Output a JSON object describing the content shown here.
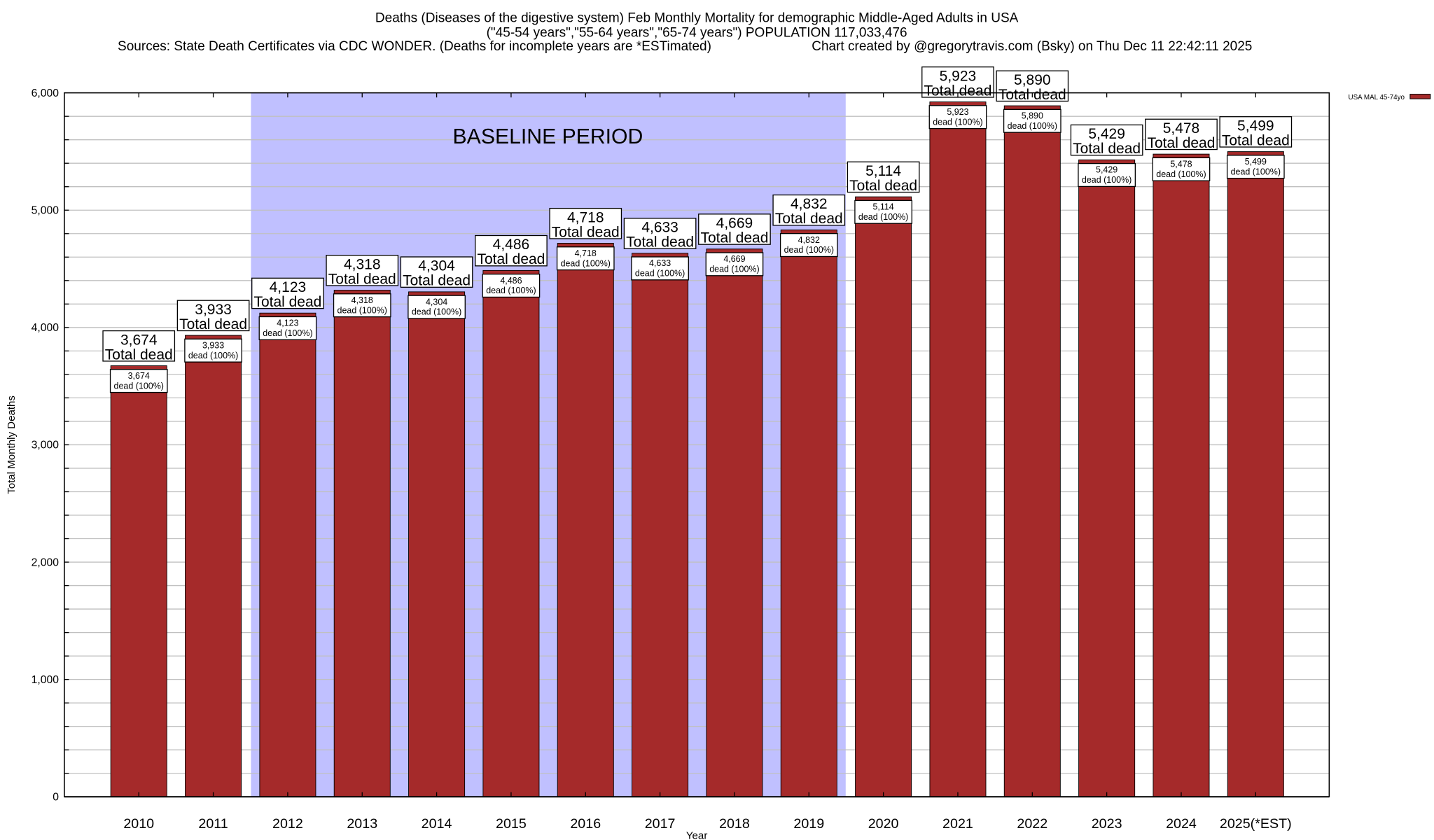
{
  "chart_data": {
    "type": "bar",
    "title": [
      "Deaths (Diseases of the digestive system) Feb Monthly Mortality for demographic Middle-Aged Adults in USA",
      "(\"45-54 years\",\"55-64 years\",\"65-74 years\") POPULATION 117,033,476"
    ],
    "sources": "Sources: State Death Certificates via CDC WONDER. (Deaths for incomplete years are *ESTimated)",
    "credit": "Chart created by @gregorytravis.com (Bsky) on Thu Dec 11 22:42:11 2025",
    "xlabel": "Year",
    "ylabel": "Total Monthly Deaths",
    "ylim": [
      0,
      6000
    ],
    "yticks": [
      0,
      1000,
      2000,
      3000,
      4000,
      5000,
      6000
    ],
    "ytick_labels": [
      "0",
      "1,000",
      "2,000",
      "3,000",
      "4,000",
      "5,000",
      "6,000"
    ],
    "minor_grid_step": 200,
    "grid": true,
    "categories": [
      "2010",
      "2011",
      "2012",
      "2013",
      "2014",
      "2015",
      "2016",
      "2017",
      "2018",
      "2019",
      "2020",
      "2021",
      "2022",
      "2023",
      "2024",
      "2025(*EST)"
    ],
    "series": [
      {
        "name": "USA MAL 45-74yo",
        "color": "#a52a2a",
        "values": [
          3674,
          3933,
          4123,
          4318,
          4304,
          4486,
          4718,
          4633,
          4669,
          4832,
          5114,
          5923,
          5890,
          5429,
          5478,
          5499
        ],
        "value_labels": [
          "3,674",
          "3,933",
          "4,123",
          "4,318",
          "4,304",
          "4,486",
          "4,718",
          "4,633",
          "4,669",
          "4,832",
          "5,114",
          "5,923",
          "5,890",
          "5,429",
          "5,478",
          "5,499"
        ]
      }
    ],
    "total_label": "Total dead",
    "pct_label": "dead (100%)",
    "baseline": {
      "label": "BASELINE PERIOD",
      "from": "2012",
      "to": "2019",
      "color": "#c0c0ff"
    },
    "legend": {
      "placement": "top-right outside",
      "label": "USA MAL 45-74yo"
    }
  }
}
